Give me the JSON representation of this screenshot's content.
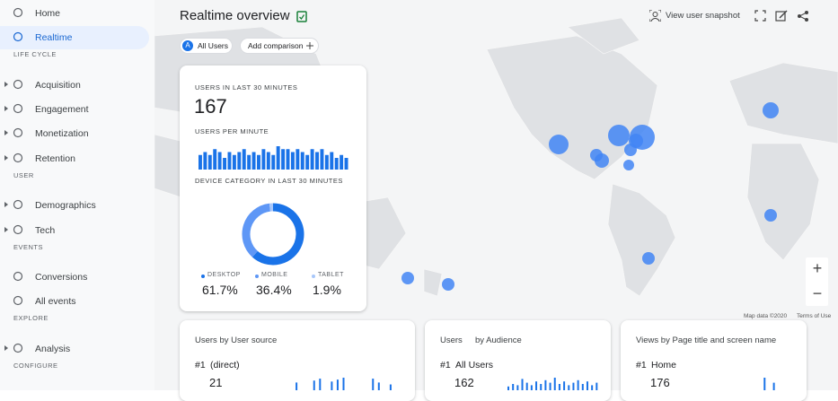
{
  "nav": [
    {
      "label": "Home"
    },
    {
      "label": "Realtime",
      "active": true
    },
    {
      "section": "LIFE CYCLE"
    },
    {
      "label": "Acquisition",
      "expandable": true
    },
    {
      "label": "Engagement",
      "expandable": true
    },
    {
      "label": "Monetization",
      "expandable": true
    },
    {
      "label": "Retention",
      "expandable": true
    },
    {
      "section": "USER"
    },
    {
      "label": "Demographics",
      "expandable": true
    },
    {
      "label": "Tech",
      "expandable": true
    },
    {
      "section": "EVENTS"
    },
    {
      "label": "Conversions"
    },
    {
      "label": "All events"
    },
    {
      "section": "EXPLORE"
    },
    {
      "label": "Analysis",
      "expandable": true
    },
    {
      "section": "CONFIGURE"
    }
  ],
  "header": {
    "title": "Realtime overview",
    "snapshot": "View user snapshot",
    "audience_badge": "A",
    "audience": "All Users",
    "add_comparison": "Add comparison"
  },
  "summary_card": {
    "users_label": "USERS IN LAST 30 MINUTES",
    "users_value": "167",
    "per_minute_label": "USERS PER MINUTE",
    "per_minute": {
      "type": "bar",
      "color": "#1a73e8",
      "values": [
        5,
        6,
        5,
        7,
        6,
        4,
        6,
        5,
        6,
        7,
        5,
        6,
        5,
        7,
        6,
        5,
        8,
        7,
        7,
        6,
        7,
        6,
        5,
        7,
        6,
        7,
        5,
        6,
        4,
        5,
        4
      ]
    },
    "device_label": "DEVICE CATEGORY IN LAST 30 MINUTES",
    "device": {
      "type": "pie",
      "series": [
        {
          "name": "DESKTOP",
          "color": "#1a73e8",
          "value": 61.7,
          "value_label": "61.7%"
        },
        {
          "name": "MOBILE",
          "color": "#5e97f6",
          "value": 36.4,
          "value_label": "36.4%"
        },
        {
          "name": "TABLET",
          "color": "#a8c7fa",
          "value": 1.9,
          "value_label": "1.9%"
        }
      ]
    }
  },
  "map": {
    "attribution": "Map data ©2020",
    "terms": "Terms of Use",
    "zoom_in": "+",
    "zoom_out": "−"
  },
  "cards": [
    {
      "title": "Users by User source",
      "rank": "#1",
      "top_name": "(direct)",
      "top_value": "21",
      "bars": [
        0,
        0,
        8,
        0,
        0,
        10,
        12,
        0,
        9,
        11,
        13,
        0,
        0,
        0,
        0,
        12,
        8,
        0,
        6,
        0
      ]
    },
    {
      "title": "Users",
      "title_suffix": "by Audience",
      "rank": "#1",
      "top_name": "All Users",
      "top_value": "162",
      "bars": [
        3,
        5,
        4,
        9,
        6,
        4,
        7,
        5,
        8,
        6,
        10,
        5,
        7,
        4,
        6,
        8,
        5,
        7,
        4,
        6
      ]
    },
    {
      "title": "Views by Page title and screen name",
      "rank": "#1",
      "top_name": "Home",
      "top_value": "176",
      "bars": [
        0,
        0,
        0,
        0,
        0,
        0,
        0,
        0,
        0,
        0,
        0,
        0,
        0,
        10,
        0,
        6,
        0,
        0,
        0,
        0
      ]
    }
  ]
}
